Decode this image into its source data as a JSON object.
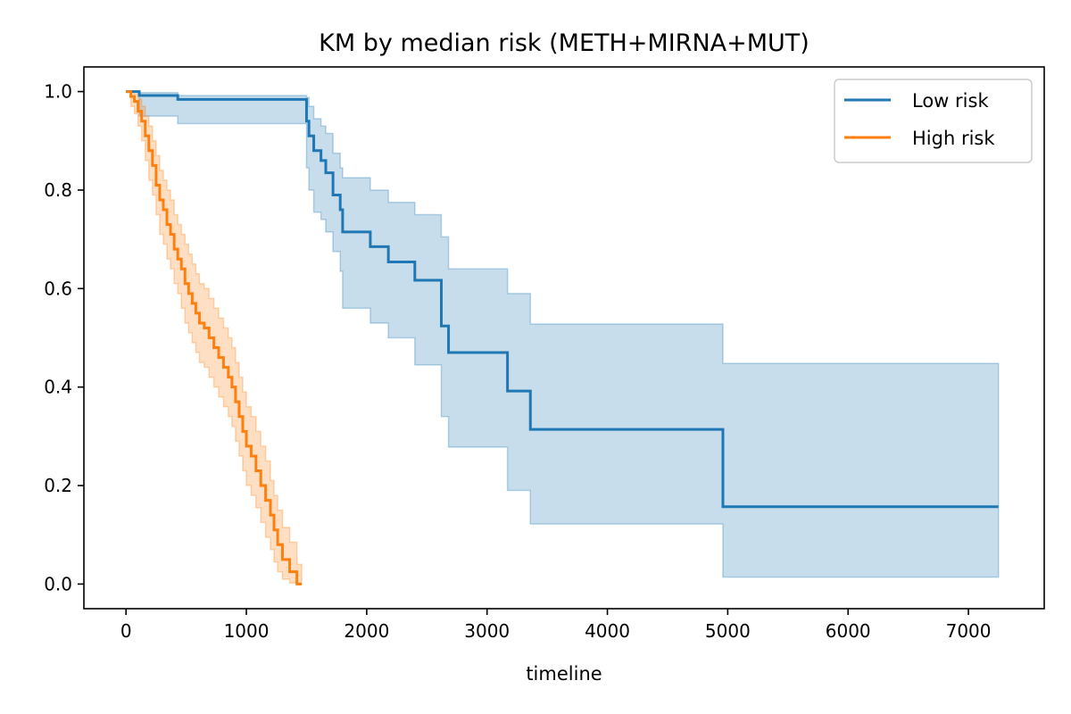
{
  "chart_data": {
    "type": "line",
    "title": "KM by median risk (METH+MIRNA+MUT)",
    "xlabel": "timeline",
    "ylabel": "",
    "xlim": [
      -350,
      7630
    ],
    "ylim": [
      -0.05,
      1.05
    ],
    "xticks": [
      0,
      1000,
      2000,
      3000,
      4000,
      5000,
      6000,
      7000
    ],
    "xtick_labels": [
      "0",
      "1000",
      "2000",
      "3000",
      "4000",
      "5000",
      "6000",
      "7000"
    ],
    "yticks": [
      0.0,
      0.2,
      0.4,
      0.6,
      0.8,
      1.0
    ],
    "ytick_labels": [
      "0.0",
      "0.2",
      "0.4",
      "0.6",
      "0.8",
      "1.0"
    ],
    "grid": false,
    "legend_position": "top-right",
    "series": [
      {
        "name": "Low risk",
        "color": "#1f77b4",
        "x": [
          0,
          110,
          430,
          1500,
          1520,
          1560,
          1620,
          1660,
          1720,
          1780,
          1800,
          2030,
          2180,
          2400,
          2620,
          2680,
          3170,
          3360,
          4960,
          7250
        ],
        "y": [
          1.0,
          0.992,
          0.984,
          0.94,
          0.91,
          0.88,
          0.86,
          0.835,
          0.79,
          0.76,
          0.715,
          0.685,
          0.654,
          0.617,
          0.524,
          0.47,
          0.392,
          0.314,
          0.157,
          0.157
        ],
        "ci_lower": [
          1.0,
          0.95,
          0.935,
          0.845,
          0.8,
          0.755,
          0.74,
          0.715,
          0.675,
          0.635,
          0.56,
          0.53,
          0.5,
          0.445,
          0.34,
          0.278,
          0.19,
          0.122,
          0.014,
          0.014
        ],
        "ci_upper": [
          1.0,
          0.998,
          0.992,
          0.988,
          0.97,
          0.945,
          0.93,
          0.915,
          0.875,
          0.845,
          0.825,
          0.8,
          0.775,
          0.75,
          0.705,
          0.64,
          0.59,
          0.528,
          0.448,
          0.448
        ]
      },
      {
        "name": "High risk",
        "color": "#ff7f0e",
        "x": [
          0,
          40,
          70,
          100,
          130,
          160,
          190,
          220,
          250,
          280,
          310,
          340,
          370,
          400,
          430,
          460,
          490,
          520,
          550,
          580,
          610,
          650,
          690,
          730,
          770,
          810,
          850,
          880,
          910,
          940,
          970,
          1000,
          1040,
          1080,
          1120,
          1160,
          1200,
          1230,
          1260,
          1300,
          1360,
          1420,
          1460
        ],
        "y": [
          1.0,
          0.99,
          0.98,
          0.96,
          0.94,
          0.91,
          0.88,
          0.85,
          0.81,
          0.78,
          0.76,
          0.73,
          0.71,
          0.68,
          0.66,
          0.64,
          0.61,
          0.59,
          0.57,
          0.55,
          0.53,
          0.52,
          0.5,
          0.48,
          0.46,
          0.44,
          0.42,
          0.4,
          0.37,
          0.34,
          0.31,
          0.28,
          0.26,
          0.23,
          0.2,
          0.17,
          0.14,
          0.11,
          0.08,
          0.05,
          0.025,
          0.0,
          0.0
        ],
        "ci_lower": [
          1.0,
          0.97,
          0.955,
          0.93,
          0.9,
          0.86,
          0.82,
          0.79,
          0.75,
          0.71,
          0.69,
          0.66,
          0.64,
          0.61,
          0.59,
          0.56,
          0.53,
          0.51,
          0.49,
          0.47,
          0.45,
          0.44,
          0.42,
          0.4,
          0.38,
          0.36,
          0.34,
          0.32,
          0.29,
          0.26,
          0.23,
          0.2,
          0.18,
          0.155,
          0.125,
          0.095,
          0.07,
          0.045,
          0.025,
          0.01,
          0.002,
          0.0,
          0.0
        ],
        "ci_upper": [
          1.0,
          1.0,
          0.995,
          0.985,
          0.97,
          0.95,
          0.93,
          0.9,
          0.87,
          0.84,
          0.82,
          0.8,
          0.78,
          0.75,
          0.73,
          0.71,
          0.69,
          0.67,
          0.65,
          0.63,
          0.61,
          0.6,
          0.58,
          0.56,
          0.54,
          0.52,
          0.5,
          0.48,
          0.45,
          0.42,
          0.39,
          0.36,
          0.34,
          0.31,
          0.28,
          0.25,
          0.21,
          0.18,
          0.15,
          0.115,
          0.085,
          0.04,
          0.04
        ]
      }
    ]
  }
}
